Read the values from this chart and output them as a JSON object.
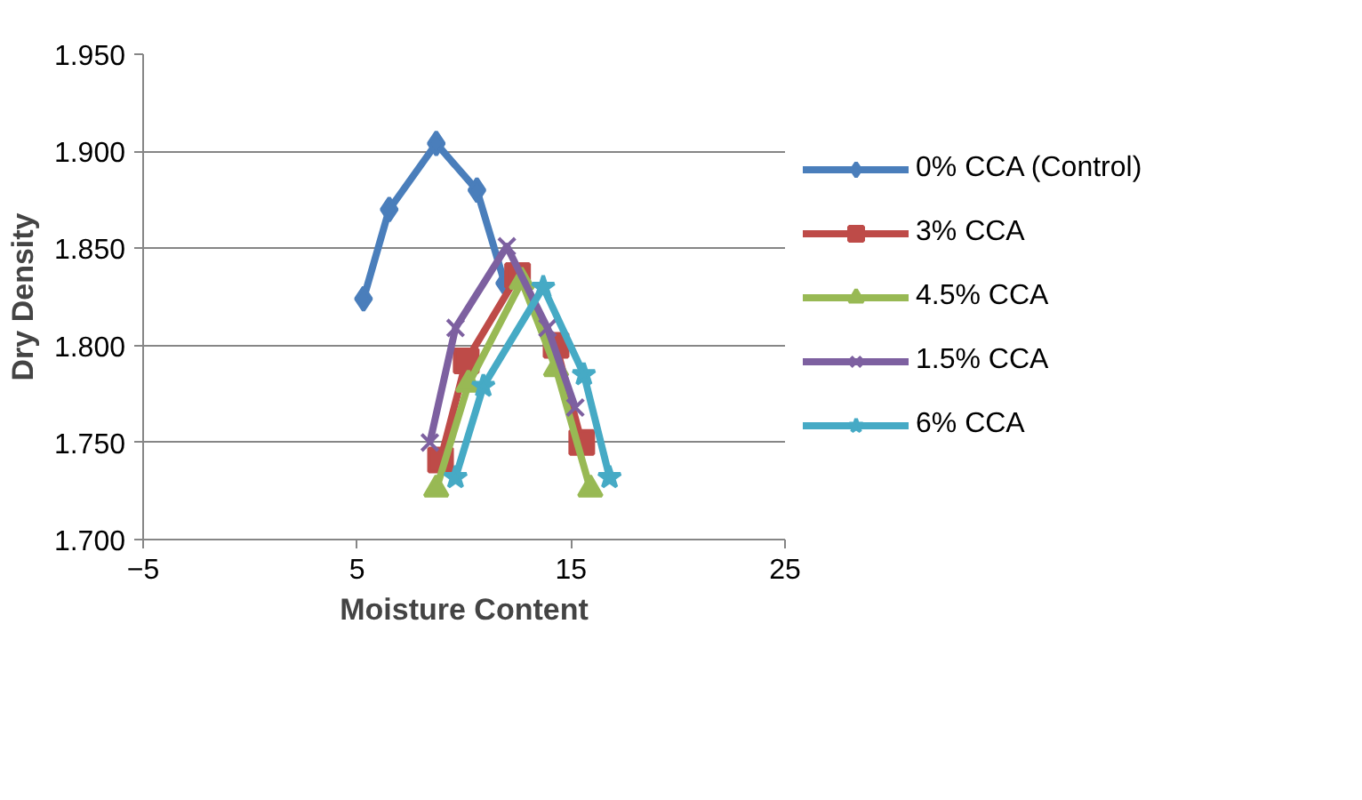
{
  "chart_data": {
    "type": "line",
    "xlabel": "Moisture Content",
    "ylabel": "Dry Density",
    "xlim": [
      -5,
      25
    ],
    "xticks": [
      -5,
      5,
      15,
      25
    ],
    "ylim": [
      1.7,
      1.95
    ],
    "yticks": [
      {
        "value": 1.7,
        "label": "1.700"
      },
      {
        "value": 1.75,
        "label": "1.750"
      },
      {
        "value": 1.8,
        "label": "1.800"
      },
      {
        "value": 1.85,
        "label": "1.850"
      },
      {
        "value": 1.9,
        "label": "1.900"
      },
      {
        "value": 1.95,
        "label": "1.950"
      }
    ],
    "grid": "y",
    "legend": "right",
    "line_style": "solid",
    "series": [
      {
        "name": "0% CCA (Control)",
        "color": "#4a7ebb",
        "marker": "diamond",
        "x": [
          5.3,
          6.5,
          8.7,
          10.6,
          11.9
        ],
        "values": [
          1.824,
          1.87,
          1.904,
          1.88,
          1.832
        ]
      },
      {
        "name": "3% CCA",
        "color": "#be4b48",
        "marker": "square",
        "x": [
          8.9,
          10.1,
          12.5,
          14.3,
          15.5
        ],
        "values": [
          1.741,
          1.792,
          1.836,
          1.8,
          1.75
        ]
      },
      {
        "name": "4.5% CCA",
        "color": "#98b954",
        "marker": "triangle",
        "x": [
          8.7,
          10.2,
          12.7,
          14.3,
          15.9
        ],
        "values": [
          1.726,
          1.78,
          1.833,
          1.788,
          1.726
        ]
      },
      {
        "name": "1.5% CCA",
        "color": "#7d60a0",
        "marker": "cross",
        "x": [
          8.4,
          9.6,
          12.0,
          13.9,
          15.2
        ],
        "values": [
          1.75,
          1.809,
          1.851,
          1.809,
          1.768
        ]
      },
      {
        "name": "6% CCA",
        "color": "#46aac5",
        "marker": "star",
        "x": [
          9.6,
          10.9,
          13.7,
          15.6,
          16.8
        ],
        "values": [
          1.732,
          1.779,
          1.83,
          1.785,
          1.732
        ]
      }
    ]
  }
}
